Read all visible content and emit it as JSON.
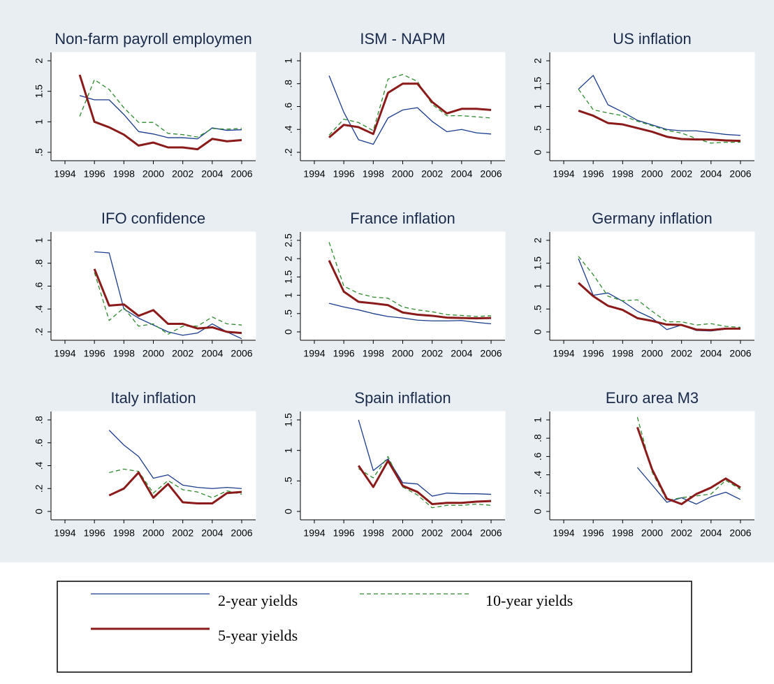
{
  "chart_data": [
    {
      "type": "line",
      "title": "Non-farm payroll employmen",
      "x": [
        1995,
        1996,
        1997,
        1998,
        1999,
        2000,
        2001,
        2002,
        2003,
        2004,
        2005,
        2006
      ],
      "xlim": [
        1994,
        2006
      ],
      "xticks": [
        1994,
        1996,
        1998,
        2000,
        2002,
        2004,
        2006
      ],
      "ylim": [
        0.5,
        2
      ],
      "yticks": [
        {
          "value": 0.5,
          "label": ".5"
        },
        1,
        {
          "value": 1.5,
          "label": "1.5"
        },
        2
      ],
      "series": [
        {
          "name": "2-year yields",
          "color": "#1a3c8c",
          "line_style": "solid",
          "weight": "thin",
          "values": [
            1.43,
            1.36,
            1.36,
            1.12,
            0.84,
            0.8,
            0.74,
            0.74,
            0.72,
            0.9,
            0.86,
            0.87
          ]
        },
        {
          "name": "10-year yields",
          "color": "#2e8b2e",
          "line_style": "dashed",
          "weight": "thin",
          "values": [
            1.09,
            1.69,
            1.53,
            1.23,
            0.99,
            0.99,
            0.81,
            0.79,
            0.75,
            0.89,
            0.88,
            0.89
          ]
        },
        {
          "name": "5-year yields",
          "color": "#8b1a1a",
          "line_style": "solid",
          "weight": "thick",
          "values": [
            1.77,
            1.0,
            0.91,
            0.79,
            0.61,
            0.66,
            0.58,
            0.58,
            0.55,
            0.72,
            0.68,
            0.7
          ]
        }
      ]
    },
    {
      "type": "line",
      "title": "ISM - NAPM",
      "x": [
        1995,
        1996,
        1997,
        1998,
        1999,
        2000,
        2001,
        2002,
        2003,
        2004,
        2005,
        2006
      ],
      "xlim": [
        1994,
        2006
      ],
      "xticks": [
        1994,
        1996,
        1998,
        2000,
        2002,
        2004,
        2006
      ],
      "ylim": [
        0.2,
        1
      ],
      "yticks": [
        {
          "value": 0.2,
          "label": ".2"
        },
        {
          "value": 0.4,
          "label": ".4"
        },
        {
          "value": 0.6,
          "label": ".6"
        },
        {
          "value": 0.8,
          "label": ".8"
        },
        1
      ],
      "series": [
        {
          "color": "#1a3c8c",
          "line_style": "solid",
          "weight": "thin",
          "values": [
            0.87,
            0.55,
            0.31,
            0.27,
            0.5,
            0.57,
            0.59,
            0.47,
            0.38,
            0.4,
            0.37,
            0.36
          ]
        },
        {
          "color": "#2e8b2e",
          "line_style": "dashed",
          "weight": "thin",
          "values": [
            0.35,
            0.49,
            0.46,
            0.39,
            0.84,
            0.88,
            0.82,
            0.62,
            0.52,
            0.52,
            0.51,
            0.5
          ]
        },
        {
          "color": "#8b1a1a",
          "line_style": "solid",
          "weight": "thick",
          "values": [
            0.33,
            0.44,
            0.42,
            0.36,
            0.72,
            0.8,
            0.8,
            0.64,
            0.54,
            0.58,
            0.58,
            0.57
          ]
        }
      ]
    },
    {
      "type": "line",
      "title": "US inflation",
      "x": [
        1995,
        1996,
        1997,
        1998,
        1999,
        2000,
        2001,
        2002,
        2003,
        2004,
        2005,
        2006
      ],
      "xlim": [
        1994,
        2006
      ],
      "xticks": [
        1994,
        1996,
        1998,
        2000,
        2002,
        2004,
        2006
      ],
      "ylim": [
        0,
        2
      ],
      "yticks": [
        0,
        {
          "value": 0.5,
          "label": ".5"
        },
        1,
        {
          "value": 1.5,
          "label": "1.5"
        },
        2
      ],
      "series": [
        {
          "color": "#1a3c8c",
          "line_style": "solid",
          "weight": "thin",
          "values": [
            1.38,
            1.68,
            1.04,
            0.88,
            0.7,
            0.6,
            0.5,
            0.47,
            0.47,
            0.43,
            0.39,
            0.37
          ]
        },
        {
          "color": "#2e8b2e",
          "line_style": "dashed",
          "weight": "thin",
          "values": [
            1.38,
            0.93,
            0.86,
            0.8,
            0.68,
            0.58,
            0.48,
            0.42,
            0.3,
            0.2,
            0.22,
            0.22
          ]
        },
        {
          "color": "#8b1a1a",
          "line_style": "solid",
          "weight": "thick",
          "values": [
            0.91,
            0.8,
            0.64,
            0.61,
            0.53,
            0.45,
            0.34,
            0.29,
            0.28,
            0.28,
            0.26,
            0.25
          ]
        }
      ]
    },
    {
      "type": "line",
      "title": "IFO confidence",
      "x": [
        1995,
        1996,
        1997,
        1998,
        1999,
        2000,
        2001,
        2002,
        2003,
        2004,
        2005,
        2006
      ],
      "xlim": [
        1994,
        2006
      ],
      "xticks": [
        1994,
        1996,
        1998,
        2000,
        2002,
        2004,
        2006
      ],
      "ylim": [
        0.2,
        1
      ],
      "yticks": [
        {
          "value": 0.2,
          "label": ".2"
        },
        {
          "value": 0.4,
          "label": ".4"
        },
        {
          "value": 0.6,
          "label": ".6"
        },
        {
          "value": 0.8,
          "label": ".8"
        },
        1
      ],
      "series": [
        {
          "color": "#1a3c8c",
          "line_style": "solid",
          "weight": "thin",
          "values": [
            null,
            0.9,
            0.89,
            0.4,
            0.32,
            0.26,
            0.2,
            0.17,
            0.19,
            0.27,
            0.2,
            0.14
          ]
        },
        {
          "color": "#2e8b2e",
          "line_style": "dashed",
          "weight": "thin",
          "values": [
            null,
            0.72,
            0.3,
            0.41,
            0.25,
            0.27,
            0.18,
            0.25,
            0.25,
            0.33,
            0.27,
            0.26
          ]
        },
        {
          "color": "#8b1a1a",
          "line_style": "solid",
          "weight": "thick",
          "values": [
            null,
            0.75,
            0.43,
            0.44,
            0.34,
            0.39,
            0.27,
            0.27,
            0.23,
            0.24,
            0.2,
            0.19
          ]
        }
      ]
    },
    {
      "type": "line",
      "title": "France inflation",
      "x": [
        1995,
        1996,
        1997,
        1998,
        1999,
        2000,
        2001,
        2002,
        2003,
        2004,
        2005,
        2006
      ],
      "xlim": [
        1994,
        2006
      ],
      "xticks": [
        1994,
        1996,
        1998,
        2000,
        2002,
        2004,
        2006
      ],
      "ylim": [
        0,
        2.5
      ],
      "yticks": [
        0,
        {
          "value": 0.5,
          "label": ".5"
        },
        1,
        {
          "value": 1.5,
          "label": "1.5"
        },
        2,
        {
          "value": 2.5,
          "label": "2.5"
        }
      ],
      "series": [
        {
          "color": "#1a3c8c",
          "line_style": "solid",
          "weight": "thin",
          "values": [
            0.78,
            0.68,
            0.6,
            0.5,
            0.42,
            0.38,
            0.32,
            0.3,
            0.3,
            0.31,
            0.26,
            0.22
          ]
        },
        {
          "color": "#2e8b2e",
          "line_style": "dashed",
          "weight": "thin",
          "values": [
            2.45,
            1.25,
            1.05,
            0.95,
            0.92,
            0.68,
            0.6,
            0.55,
            0.47,
            0.45,
            0.42,
            0.44
          ]
        },
        {
          "color": "#8b1a1a",
          "line_style": "solid",
          "weight": "thick",
          "values": [
            1.95,
            1.1,
            0.82,
            0.78,
            0.73,
            0.53,
            0.47,
            0.44,
            0.39,
            0.38,
            0.37,
            0.38
          ]
        }
      ]
    },
    {
      "type": "line",
      "title": "Germany inflation",
      "x": [
        1995,
        1996,
        1997,
        1998,
        1999,
        2000,
        2001,
        2002,
        2003,
        2004,
        2005,
        2006
      ],
      "xlim": [
        1994,
        2006
      ],
      "xticks": [
        1994,
        1996,
        1998,
        2000,
        2002,
        2004,
        2006
      ],
      "ylim": [
        0,
        2
      ],
      "yticks": [
        0,
        {
          "value": 0.5,
          "label": ".5"
        },
        1,
        {
          "value": 1.5,
          "label": "1.5"
        },
        2
      ],
      "series": [
        {
          "color": "#1a3c8c",
          "line_style": "solid",
          "weight": "thin",
          "values": [
            1.6,
            0.8,
            0.85,
            0.67,
            0.45,
            0.3,
            0.05,
            0.15,
            0.03,
            0.02,
            0.06,
            0.08
          ]
        },
        {
          "color": "#2e8b2e",
          "line_style": "dashed",
          "weight": "thin",
          "values": [
            1.65,
            1.25,
            0.78,
            0.68,
            0.7,
            0.45,
            0.22,
            0.22,
            0.15,
            0.18,
            0.12,
            0.1
          ]
        },
        {
          "color": "#8b1a1a",
          "line_style": "solid",
          "weight": "thick",
          "values": [
            1.07,
            0.78,
            0.57,
            0.48,
            0.3,
            0.24,
            0.16,
            0.15,
            0.05,
            0.04,
            0.07,
            0.07
          ]
        }
      ]
    },
    {
      "type": "line",
      "title": "Italy inflation",
      "x": [
        1995,
        1996,
        1997,
        1998,
        1999,
        2000,
        2001,
        2002,
        2003,
        2004,
        2005,
        2006
      ],
      "xlim": [
        1994,
        2006
      ],
      "xticks": [
        1994,
        1996,
        1998,
        2000,
        2002,
        2004,
        2006
      ],
      "ylim": [
        0,
        0.8
      ],
      "yticks": [
        0,
        {
          "value": 0.2,
          "label": ".2"
        },
        {
          "value": 0.4,
          "label": ".4"
        },
        {
          "value": 0.6,
          "label": ".6"
        },
        {
          "value": 0.8,
          "label": ".8"
        }
      ],
      "series": [
        {
          "color": "#1a3c8c",
          "line_style": "solid",
          "weight": "thin",
          "values": [
            null,
            null,
            0.71,
            0.58,
            0.48,
            0.29,
            0.32,
            0.23,
            0.21,
            0.2,
            0.21,
            0.2
          ]
        },
        {
          "color": "#2e8b2e",
          "line_style": "dashed",
          "weight": "thin",
          "values": [
            null,
            null,
            0.34,
            0.37,
            0.35,
            0.16,
            0.27,
            0.19,
            0.17,
            0.12,
            0.18,
            0.15
          ]
        },
        {
          "color": "#8b1a1a",
          "line_style": "solid",
          "weight": "thick",
          "values": [
            null,
            null,
            0.14,
            0.2,
            0.34,
            0.12,
            0.24,
            0.08,
            0.07,
            0.07,
            0.16,
            0.17
          ]
        }
      ]
    },
    {
      "type": "line",
      "title": "Spain inflation",
      "x": [
        1995,
        1996,
        1997,
        1998,
        1999,
        2000,
        2001,
        2002,
        2003,
        2004,
        2005,
        2006
      ],
      "xlim": [
        1994,
        2006
      ],
      "xticks": [
        1994,
        1996,
        1998,
        2000,
        2002,
        2004,
        2006
      ],
      "ylim": [
        0,
        1.5
      ],
      "yticks": [
        0,
        {
          "value": 0.5,
          "label": ".5"
        },
        1,
        {
          "value": 1.5,
          "label": "1.5"
        }
      ],
      "series": [
        {
          "color": "#1a3c8c",
          "line_style": "solid",
          "weight": "thin",
          "values": [
            null,
            null,
            1.5,
            0.67,
            0.86,
            0.47,
            0.45,
            0.25,
            0.3,
            0.29,
            0.29,
            0.28
          ]
        },
        {
          "color": "#2e8b2e",
          "line_style": "dashed",
          "weight": "thin",
          "values": [
            null,
            null,
            0.7,
            0.55,
            0.9,
            0.4,
            0.27,
            0.06,
            0.1,
            0.1,
            0.12,
            0.1
          ]
        },
        {
          "color": "#8b1a1a",
          "line_style": "solid",
          "weight": "thick",
          "values": [
            null,
            null,
            0.75,
            0.4,
            0.83,
            0.42,
            0.32,
            0.12,
            0.14,
            0.14,
            0.16,
            0.17
          ]
        }
      ]
    },
    {
      "type": "line",
      "title": "Euro area M3",
      "x": [
        1995,
        1996,
        1997,
        1998,
        1999,
        2000,
        2001,
        2002,
        2003,
        2004,
        2005,
        2006
      ],
      "xlim": [
        1994,
        2006
      ],
      "xticks": [
        1994,
        1996,
        1998,
        2000,
        2002,
        2004,
        2006
      ],
      "ylim": [
        0,
        1
      ],
      "yticks": [
        0,
        {
          "value": 0.2,
          "label": ".2"
        },
        {
          "value": 0.4,
          "label": ".4"
        },
        {
          "value": 0.6,
          "label": ".6"
        },
        {
          "value": 0.8,
          "label": ".8"
        },
        1
      ],
      "series": [
        {
          "color": "#1a3c8c",
          "line_style": "solid",
          "weight": "thin",
          "values": [
            null,
            null,
            null,
            null,
            0.48,
            0.29,
            0.1,
            0.15,
            0.08,
            0.16,
            0.21,
            0.13
          ]
        },
        {
          "color": "#2e8b2e",
          "line_style": "dashed",
          "weight": "thin",
          "values": [
            null,
            null,
            null,
            null,
            1.03,
            0.43,
            0.12,
            0.15,
            0.17,
            0.19,
            0.34,
            0.24
          ]
        },
        {
          "color": "#8b1a1a",
          "line_style": "solid",
          "weight": "thick",
          "values": [
            null,
            null,
            null,
            null,
            0.92,
            0.46,
            0.14,
            0.08,
            0.19,
            0.26,
            0.36,
            0.26
          ]
        }
      ]
    }
  ]
}
